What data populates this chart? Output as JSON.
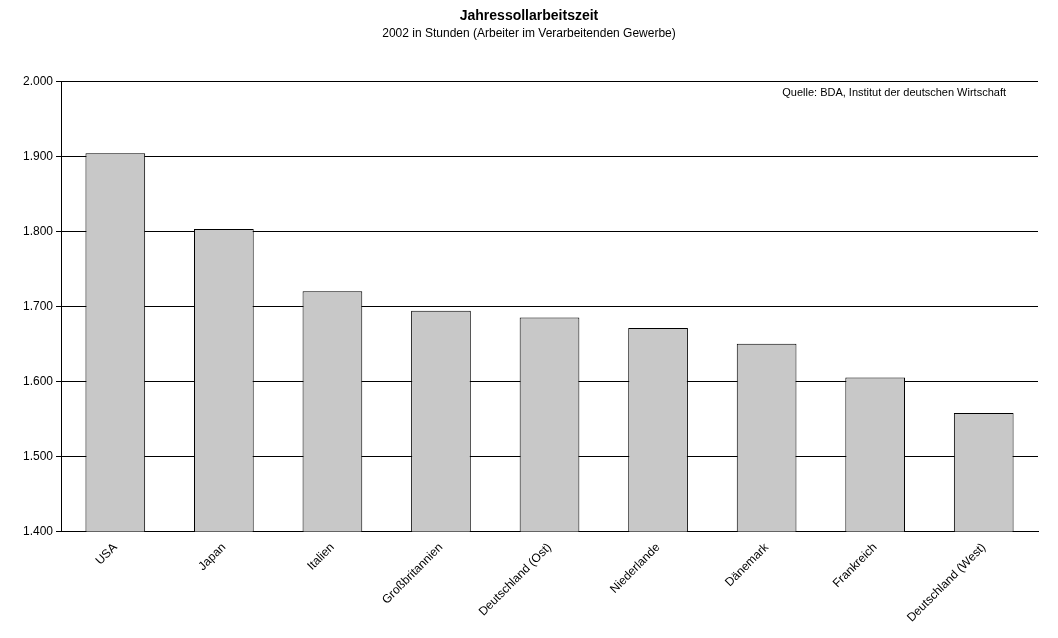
{
  "chart_data": {
    "type": "bar",
    "title": "Jahressollarbeitszeit",
    "subtitle": "2002 in Stunden (Arbeiter im Verarbeitenden Gewerbe)",
    "categories": [
      "USA",
      "Japan",
      "Italien",
      "Großbritannien",
      "Deutschland (Ost)",
      "Niederlande",
      "Dänemark",
      "Frankreich",
      "Deutschland (West)"
    ],
    "values": [
      1904,
      1803,
      1720,
      1694,
      1685,
      1671,
      1650,
      1605,
      1558
    ],
    "color": "#c8c8c8",
    "ylim": [
      1400,
      2000
    ],
    "yticks": [
      {
        "value": 1400,
        "label": "1.400"
      },
      {
        "value": 1500,
        "label": "1.500"
      },
      {
        "value": 1600,
        "label": "1.600"
      },
      {
        "value": 1700,
        "label": "1.700"
      },
      {
        "value": 1800,
        "label": "1.800"
      },
      {
        "value": 1900,
        "label": "1.900"
      },
      {
        "value": 2000,
        "label": "2.000"
      }
    ],
    "grid": "y",
    "legend": false,
    "annotations": [
      "Quelle: BDA, Institut der deutschen Wirtschaft"
    ]
  }
}
